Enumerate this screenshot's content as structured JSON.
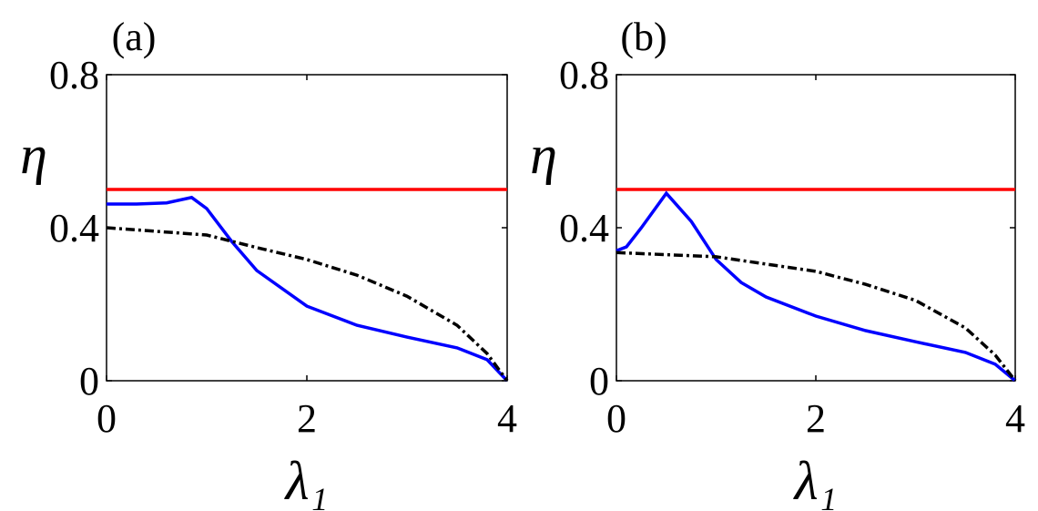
{
  "chart_data": [
    {
      "type": "line",
      "title": "(a)",
      "ylabel": "η",
      "xlabel": "λ₁",
      "xlim": [
        0,
        4
      ],
      "ylim": [
        0,
        0.8
      ],
      "xticks": [
        0,
        2,
        4
      ],
      "yticks": [
        0,
        0.4,
        0.8
      ],
      "series": [
        {
          "color": "#ff0000",
          "style": "solid",
          "x": [
            0,
            4
          ],
          "values": [
            0.5,
            0.5
          ]
        },
        {
          "color": "#0000ff",
          "style": "solid",
          "x": [
            0,
            0.3,
            0.6,
            0.85,
            1.0,
            1.25,
            1.5,
            2,
            2.5,
            3,
            3.5,
            3.8,
            4
          ],
          "values": [
            0.462,
            0.462,
            0.465,
            0.479,
            0.45,
            0.364,
            0.288,
            0.195,
            0.145,
            0.114,
            0.086,
            0.055,
            0
          ]
        },
        {
          "color": "#000000",
          "style": "dashed",
          "x": [
            0,
            1,
            1.5,
            2,
            2.5,
            3,
            3.5,
            3.8,
            4
          ],
          "values": [
            0.4,
            0.381,
            0.348,
            0.317,
            0.276,
            0.221,
            0.145,
            0.071,
            0
          ]
        }
      ]
    },
    {
      "type": "line",
      "title": "(b)",
      "ylabel": "η",
      "xlabel": "λ₁",
      "xlim": [
        0,
        4
      ],
      "ylim": [
        0,
        0.8
      ],
      "xticks": [
        0,
        2,
        4
      ],
      "yticks": [
        0,
        0.4,
        0.8
      ],
      "series": [
        {
          "color": "#ff0000",
          "style": "solid",
          "x": [
            0,
            4
          ],
          "values": [
            0.5,
            0.5
          ]
        },
        {
          "color": "#0000ff",
          "style": "solid",
          "x": [
            0,
            0.1,
            0.25,
            0.5,
            0.75,
            1,
            1.25,
            1.5,
            2,
            2.5,
            3,
            3.5,
            3.8,
            4
          ],
          "values": [
            0.34,
            0.35,
            0.4,
            0.49,
            0.417,
            0.317,
            0.257,
            0.219,
            0.169,
            0.131,
            0.102,
            0.074,
            0.043,
            0
          ]
        },
        {
          "color": "#000000",
          "style": "dashed",
          "x": [
            0,
            1,
            2,
            2.5,
            3,
            3.5,
            3.8,
            4
          ],
          "values": [
            0.335,
            0.324,
            0.286,
            0.252,
            0.21,
            0.138,
            0.067,
            0
          ]
        }
      ]
    }
  ]
}
